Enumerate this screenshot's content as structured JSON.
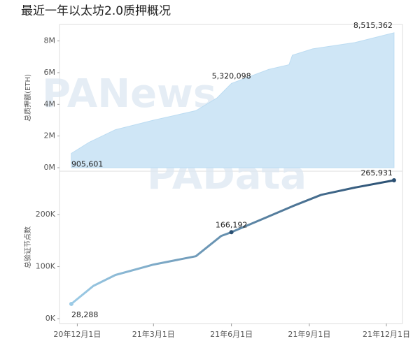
{
  "title": "最近一年以太坊2.0质押概况",
  "watermarks": [
    "PANews",
    "PAData"
  ],
  "chart_data": [
    {
      "type": "area",
      "ylabel": "总质押额(ETH)",
      "color": "#cfe6f6",
      "x": [
        "2020-11-24",
        "2020-12-15",
        "2021-01-15",
        "2021-03-01",
        "2021-04-20",
        "2021-05-15",
        "2021-06-01",
        "2021-07-15",
        "2021-08-08",
        "2021-08-12",
        "2021-09-05",
        "2021-10-25",
        "2021-12-10"
      ],
      "values": [
        905601,
        1600000,
        2400000,
        3000000,
        3600000,
        4400000,
        5320098,
        6200000,
        6500000,
        7100000,
        7500000,
        7900000,
        8515362
      ],
      "value_labels": [
        "905,601",
        null,
        null,
        null,
        null,
        null,
        "5,320,098",
        null,
        null,
        null,
        null,
        null,
        "8,515,362"
      ],
      "xlim": [
        "2020-11-10",
        "2021-12-20"
      ],
      "ylim": [
        0,
        8600000
      ],
      "yticks": [
        {
          "value": 0,
          "label": "0M"
        },
        {
          "value": 2000000,
          "label": "2M"
        },
        {
          "value": 4000000,
          "label": "4M"
        },
        {
          "value": 6000000,
          "label": "6M"
        },
        {
          "value": 8000000,
          "label": "8M"
        }
      ],
      "grid": false
    },
    {
      "type": "line",
      "ylabel": "总验证节点数",
      "color": [
        "#9ccbe6",
        "#2a4f72"
      ],
      "x": [
        "2020-11-24",
        "2020-12-20",
        "2021-01-15",
        "2021-03-01",
        "2021-04-20",
        "2021-05-20",
        "2021-06-01",
        "2021-07-10",
        "2021-08-12",
        "2021-09-15",
        "2021-10-25",
        "2021-12-10"
      ],
      "values": [
        28288,
        63000,
        84000,
        104000,
        120000,
        159000,
        166192,
        193000,
        216000,
        238000,
        252000,
        265931
      ],
      "value_labels": [
        "28,288",
        null,
        null,
        null,
        null,
        null,
        "166,192",
        null,
        null,
        null,
        null,
        "265,931"
      ],
      "xlim": [
        "2020-11-10",
        "2021-12-20"
      ],
      "ylim": [
        0,
        270000
      ],
      "yticks": [
        {
          "value": 0,
          "label": "0K"
        },
        {
          "value": 100000,
          "label": "100K"
        },
        {
          "value": 200000,
          "label": "200K"
        }
      ],
      "xticks": [
        {
          "value": "2020-12-01",
          "label": "20年12月1日"
        },
        {
          "value": "2021-03-01",
          "label": "21年3月1日"
        },
        {
          "value": "2021-06-01",
          "label": "21年6月1日"
        },
        {
          "value": "2021-09-01",
          "label": "21年9月1日"
        },
        {
          "value": "2021-12-01",
          "label": "21年12月1日"
        }
      ],
      "grid": false
    }
  ]
}
